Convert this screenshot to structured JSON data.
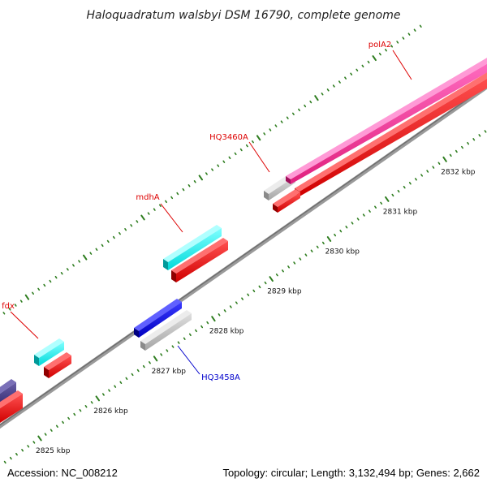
{
  "title": "Haloquadratum walsbyi DSM 16790, complete genome",
  "accession": "Accession: NC_008212",
  "topology": "Topology: circular; Length: 3,132,494 bp; Genes: 2,662",
  "colors": {
    "backbone": "#8a8a8a",
    "tick": "#2e7d1f",
    "label_forward": "#dd0000",
    "label_reverse": "#0000cc",
    "cds": "#ff1010",
    "grey_gene": "#c2c2c2",
    "trna": "#22ffff",
    "polA2": "#ff3ea5",
    "blue_gene": "#1010e0",
    "purple_gene": "#4a3f88"
  },
  "ticks": [
    {
      "kbp": 2825,
      "label": "2825 kbp"
    },
    {
      "kbp": 2826,
      "label": "2826 kbp"
    },
    {
      "kbp": 2827,
      "label": "2827 kbp"
    },
    {
      "kbp": 2828,
      "label": "2828 kbp"
    },
    {
      "kbp": 2829,
      "label": "2829 kbp"
    },
    {
      "kbp": 2830,
      "label": "2830 kbp"
    },
    {
      "kbp": 2831,
      "label": "2831 kbp"
    },
    {
      "kbp": 2832,
      "label": "2832 kbp"
    }
  ],
  "genes": [
    {
      "name": "fdx",
      "label": "fdx"
    },
    {
      "name": "mdhA",
      "label": "mdhA"
    },
    {
      "name": "HQ3460A",
      "label": "HQ3460A"
    },
    {
      "name": "polA2",
      "label": "polA2"
    },
    {
      "name": "HQ3458A",
      "label": "HQ3458A"
    }
  ]
}
